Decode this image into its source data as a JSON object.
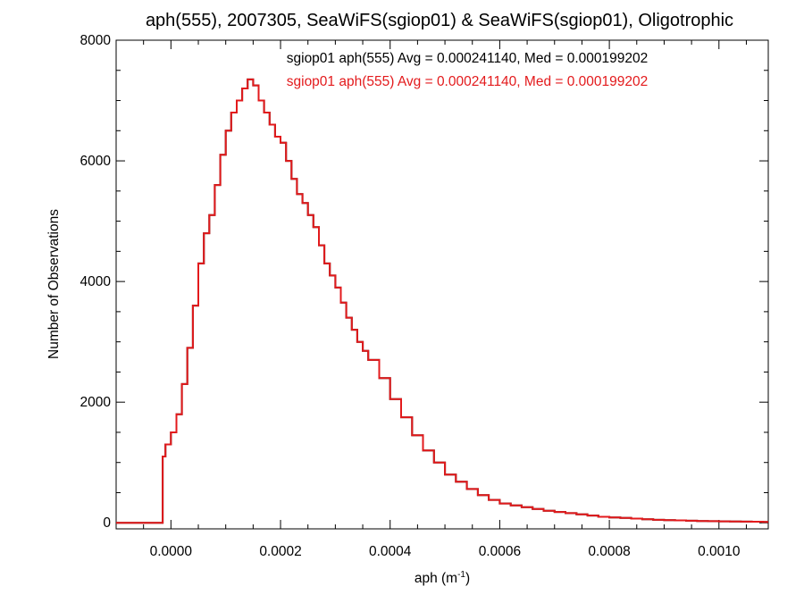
{
  "chart_data": {
    "type": "line",
    "title": "aph(555), 2007305, SeaWiFS(sgiop01) & SeaWiFS(sgiop01), Oligotrophic",
    "xlabel_base": "aph (m",
    "xlabel_sup": "-1",
    "xlabel_end": ")",
    "ylabel": "Number of Observations",
    "xlim": [
      -0.0001,
      0.00109
    ],
    "ylim": [
      -100,
      8000
    ],
    "xticks": [
      0.0,
      0.0002,
      0.0004,
      0.0006,
      0.0008,
      0.001
    ],
    "xtick_labels": [
      "0.0000",
      "0.0002",
      "0.0004",
      "0.0006",
      "0.0008",
      "0.0010"
    ],
    "yticks": [
      0,
      2000,
      4000,
      6000,
      8000
    ],
    "ytick_labels": [
      "0",
      "2000",
      "4000",
      "6000",
      "8000"
    ],
    "grid": false,
    "series": [
      {
        "name": "sgiop01 aph(555) Avg = 0.000241140, Med = 0.000199202",
        "color": "#000000",
        "x": [
          -0.0001,
          -2e-05,
          -1.5e-05,
          -1e-05,
          0.0,
          1e-05,
          2e-05,
          3e-05,
          4e-05,
          5e-05,
          6e-05,
          7e-05,
          8e-05,
          9e-05,
          0.0001,
          0.00011,
          0.00012,
          0.00013,
          0.00014,
          0.00015,
          0.00016,
          0.00017,
          0.00018,
          0.00019,
          0.0002,
          0.00021,
          0.00022,
          0.00023,
          0.00024,
          0.00025,
          0.00026,
          0.00027,
          0.00028,
          0.00029,
          0.0003,
          0.00031,
          0.00032,
          0.00033,
          0.00034,
          0.00035,
          0.00036,
          0.00038,
          0.0004,
          0.00042,
          0.00044,
          0.00046,
          0.00048,
          0.0005,
          0.00052,
          0.00054,
          0.00056,
          0.00058,
          0.0006,
          0.00062,
          0.00064,
          0.00066,
          0.00068,
          0.0007,
          0.00072,
          0.00074,
          0.00076,
          0.00078,
          0.0008,
          0.00082,
          0.00084,
          0.00086,
          0.00088,
          0.0009,
          0.00092,
          0.00094,
          0.00096,
          0.00098,
          0.001,
          0.00102,
          0.00104,
          0.00106,
          0.00108,
          0.00109
        ],
        "y": [
          0,
          0,
          1100,
          1300,
          1500,
          1800,
          2300,
          2900,
          3600,
          4300,
          4800,
          5100,
          5600,
          6100,
          6500,
          6800,
          7000,
          7200,
          7350,
          7250,
          7000,
          6800,
          6600,
          6400,
          6300,
          6000,
          5700,
          5450,
          5300,
          5100,
          4900,
          4600,
          4300,
          4100,
          3900,
          3650,
          3400,
          3200,
          3000,
          2850,
          2700,
          2400,
          2050,
          1750,
          1450,
          1200,
          1000,
          800,
          680,
          560,
          460,
          380,
          320,
          290,
          260,
          230,
          200,
          180,
          160,
          140,
          120,
          100,
          90,
          80,
          70,
          60,
          50,
          45,
          40,
          35,
          30,
          28,
          25,
          22,
          20,
          18,
          15,
          15
        ]
      },
      {
        "name": "sgiop01 aph(555) Avg = 0.000241140, Med = 0.000199202",
        "color": "#e31a1c",
        "x": [
          -0.0001,
          -2e-05,
          -1.5e-05,
          -1e-05,
          0.0,
          1e-05,
          2e-05,
          3e-05,
          4e-05,
          5e-05,
          6e-05,
          7e-05,
          8e-05,
          9e-05,
          0.0001,
          0.00011,
          0.00012,
          0.00013,
          0.00014,
          0.00015,
          0.00016,
          0.00017,
          0.00018,
          0.00019,
          0.0002,
          0.00021,
          0.00022,
          0.00023,
          0.00024,
          0.00025,
          0.00026,
          0.00027,
          0.00028,
          0.00029,
          0.0003,
          0.00031,
          0.00032,
          0.00033,
          0.00034,
          0.00035,
          0.00036,
          0.00038,
          0.0004,
          0.00042,
          0.00044,
          0.00046,
          0.00048,
          0.0005,
          0.00052,
          0.00054,
          0.00056,
          0.00058,
          0.0006,
          0.00062,
          0.00064,
          0.00066,
          0.00068,
          0.0007,
          0.00072,
          0.00074,
          0.00076,
          0.00078,
          0.0008,
          0.00082,
          0.00084,
          0.00086,
          0.00088,
          0.0009,
          0.00092,
          0.00094,
          0.00096,
          0.00098,
          0.001,
          0.00102,
          0.00104,
          0.00106,
          0.00108,
          0.00109
        ],
        "y": [
          0,
          0,
          1100,
          1300,
          1500,
          1800,
          2300,
          2900,
          3600,
          4300,
          4800,
          5100,
          5600,
          6100,
          6500,
          6800,
          7000,
          7200,
          7350,
          7250,
          7000,
          6800,
          6600,
          6400,
          6300,
          6000,
          5700,
          5450,
          5300,
          5100,
          4900,
          4600,
          4300,
          4100,
          3900,
          3650,
          3400,
          3200,
          3000,
          2850,
          2700,
          2400,
          2050,
          1750,
          1450,
          1200,
          1000,
          800,
          680,
          560,
          460,
          380,
          320,
          290,
          260,
          230,
          200,
          180,
          160,
          140,
          120,
          100,
          90,
          80,
          70,
          60,
          50,
          45,
          40,
          35,
          30,
          28,
          25,
          22,
          20,
          18,
          15,
          15
        ]
      }
    ]
  }
}
